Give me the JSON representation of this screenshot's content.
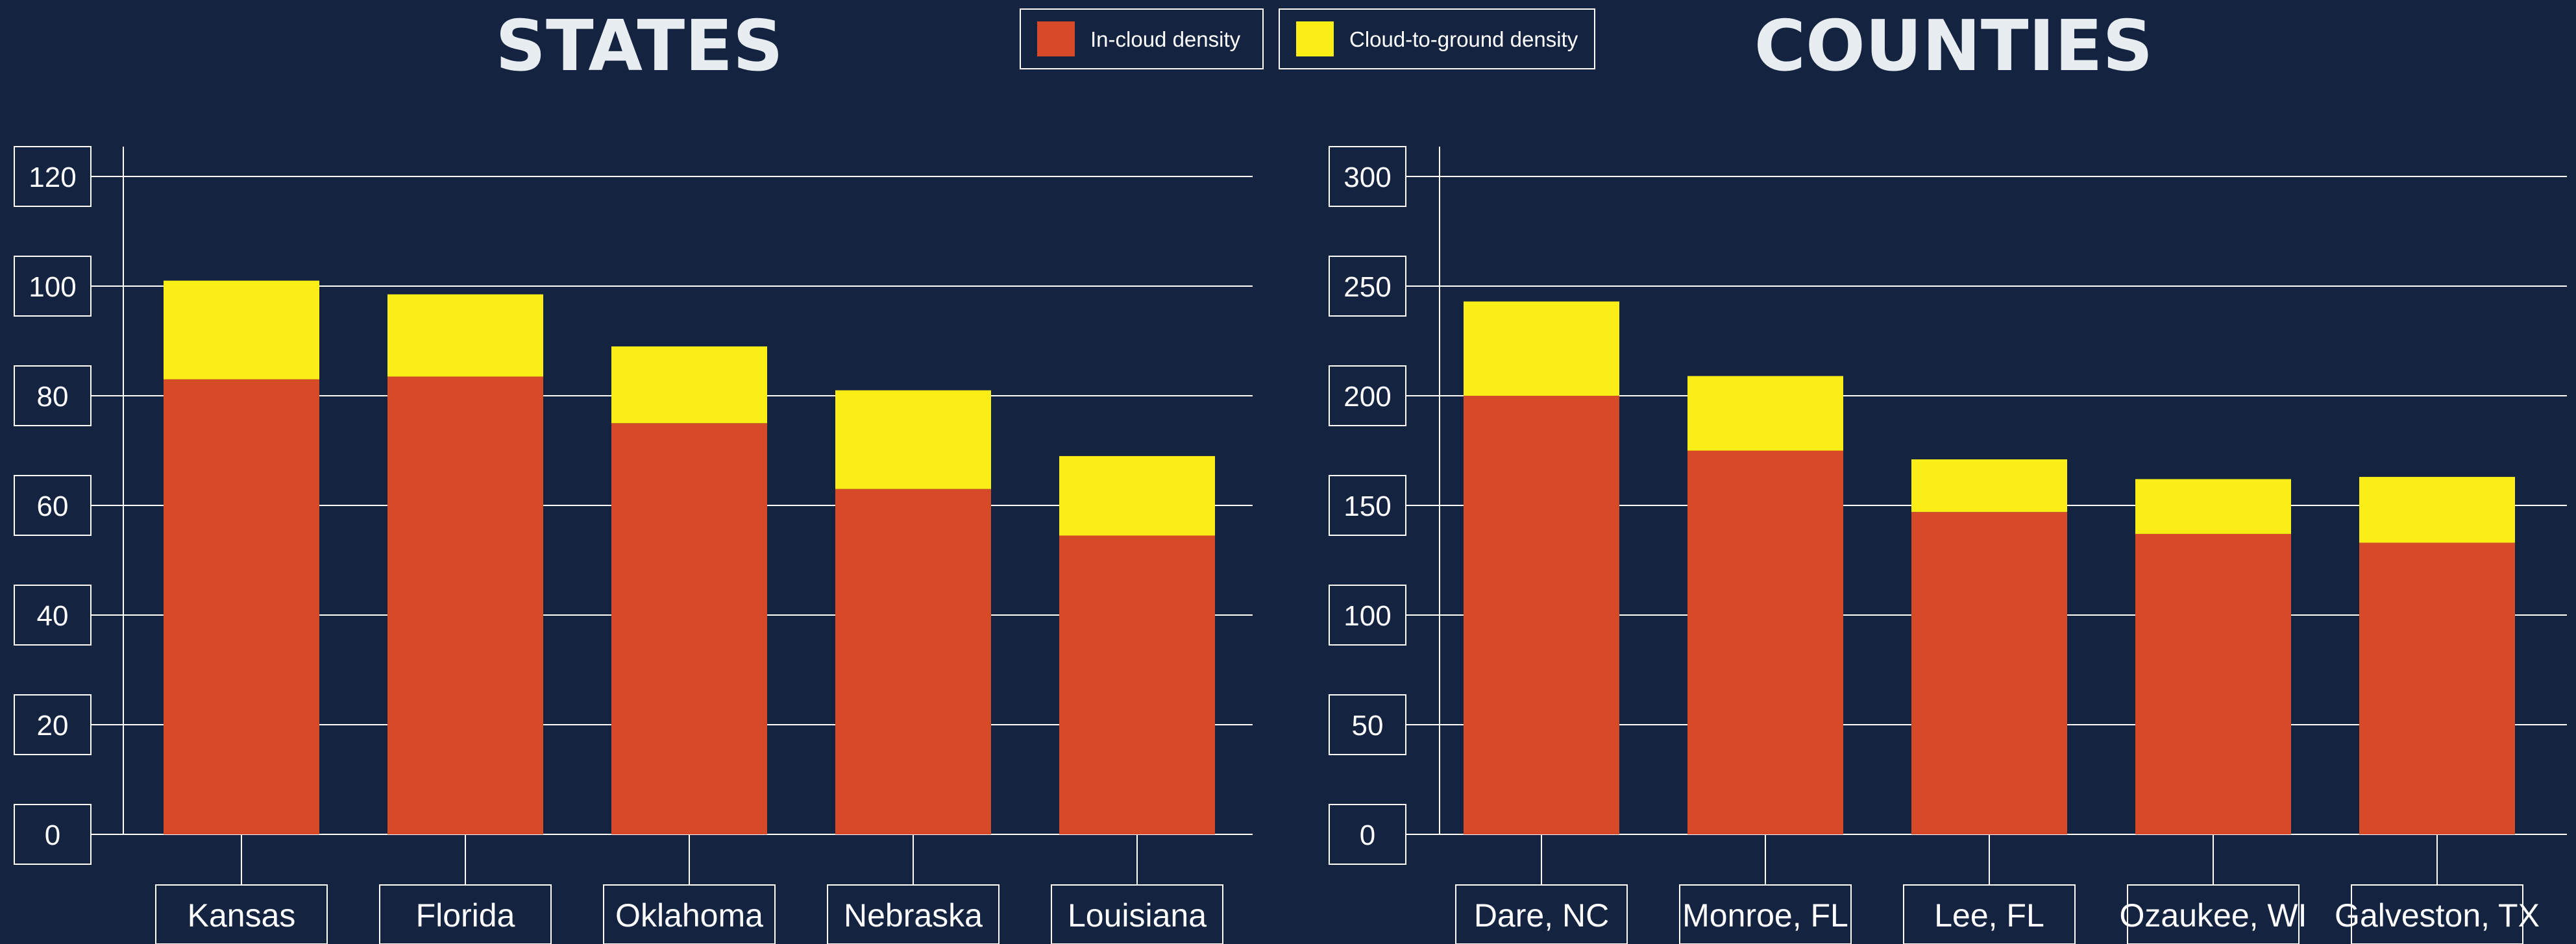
{
  "legend": {
    "items": [
      {
        "label": "In-cloud density",
        "color": "#d64a27"
      },
      {
        "label": "Cloud-to-ground density",
        "color": "#fbee16"
      }
    ]
  },
  "style": {
    "background": "#142340",
    "grid_color": "#ffffff",
    "text_color": "#ffffff"
  },
  "chart_data": [
    {
      "type": "bar",
      "stacked": true,
      "title": "STATES",
      "categories": [
        "Kansas",
        "Florida",
        "Oklahoma",
        "Nebraska",
        "Louisiana"
      ],
      "series": [
        {
          "name": "In-cloud density",
          "values": [
            83,
            83.5,
            75,
            63,
            54.5
          ]
        },
        {
          "name": "Cloud-to-ground density",
          "values": [
            18,
            15,
            14,
            18,
            14.5
          ]
        }
      ],
      "yticks": [
        0,
        20,
        40,
        60,
        80,
        100,
        120
      ],
      "ylim": [
        0,
        120
      ],
      "grid": true
    },
    {
      "type": "bar",
      "stacked": true,
      "title": "COUNTIES",
      "categories": [
        "Dare, NC",
        "Monroe, FL",
        "Lee, FL",
        "Ozaukee, WI",
        "Galveston, TX"
      ],
      "series": [
        {
          "name": "In-cloud density",
          "values": [
            200,
            175,
            147,
            137,
            133
          ]
        },
        {
          "name": "Cloud-to-ground density",
          "values": [
            43,
            34,
            24,
            25,
            30
          ]
        }
      ],
      "yticks": [
        0,
        50,
        100,
        150,
        200,
        250,
        300
      ],
      "ylim": [
        0,
        300
      ],
      "grid": true
    }
  ]
}
